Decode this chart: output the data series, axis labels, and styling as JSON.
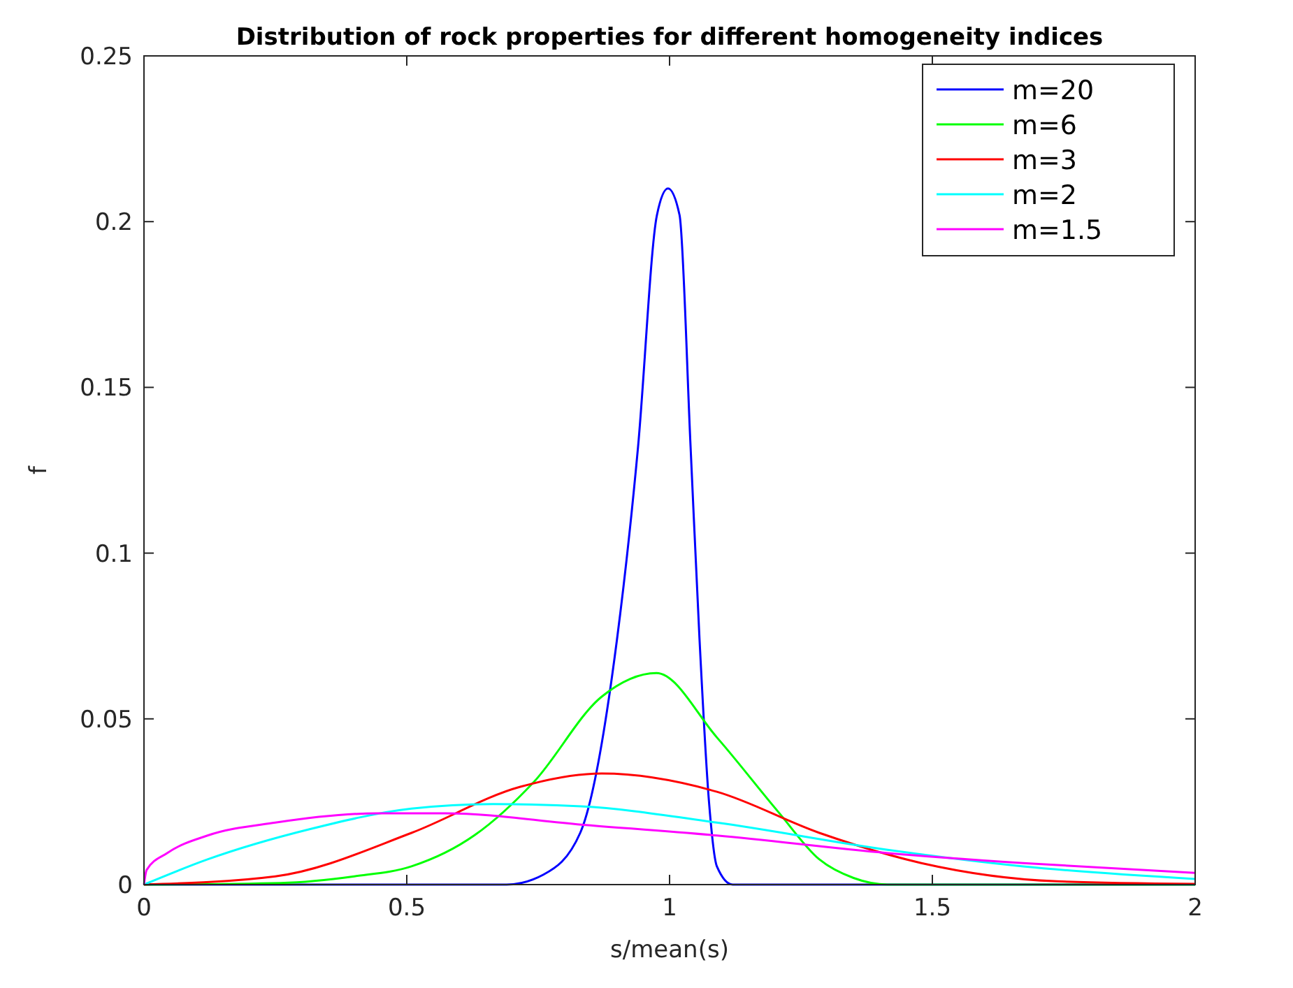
{
  "chart_data": {
    "type": "line",
    "title": "Distribution of rock properties for different homogeneity indices",
    "xlabel": "s/mean(s)",
    "ylabel": "f",
    "xlim": [
      0,
      2
    ],
    "ylim": [
      0,
      0.25
    ],
    "xticks": [
      0,
      0.5,
      1,
      1.5,
      2
    ],
    "yticks": [
      0,
      0.05,
      0.1,
      0.15,
      0.2,
      0.25
    ],
    "grid": false,
    "legend": "top right",
    "marker": "none",
    "line_style": "solid",
    "series": [
      {
        "name": "m=20",
        "color": "#0000ff",
        "x": [
          0,
          0.5,
          0.69,
          0.76,
          0.83,
          0.9,
          0.94,
          0.976,
          0.997,
          1.019,
          1.04,
          1.057,
          1.075,
          1.09,
          1.12,
          1.5,
          2
        ],
        "values": [
          0,
          0,
          0,
          0.003,
          0.0156,
          0.074,
          0.132,
          0.202,
          0.21,
          0.202,
          0.132,
          0.074,
          0.025,
          0.0055,
          0,
          0,
          0
        ]
      },
      {
        "name": "m=6",
        "color": "#00ff00",
        "x": [
          0,
          0.26,
          0.4,
          0.509,
          0.63,
          0.742,
          0.871,
          0.975,
          1.09,
          1.207,
          1.285,
          1.35,
          1.415,
          2
        ],
        "values": [
          0,
          0.0005,
          0.0025,
          0.0055,
          0.015,
          0.031,
          0.0567,
          0.0638,
          0.0444,
          0.0219,
          0.0076,
          0.002,
          0,
          0
        ]
      },
      {
        "name": "m=3",
        "color": "#ff0000",
        "x": [
          0,
          0.25,
          0.509,
          0.716,
          0.871,
          1.09,
          1.285,
          1.479,
          1.737,
          2
        ],
        "values": [
          0,
          0.0025,
          0.0156,
          0.0295,
          0.0335,
          0.028,
          0.0156,
          0.0065,
          0.001,
          0.0002
        ]
      },
      {
        "name": "m=2",
        "color": "#00ffff",
        "x": [
          0,
          0.121,
          0.315,
          0.509,
          0.664,
          0.832,
          1.09,
          1.415,
          1.673,
          2
        ],
        "values": [
          0,
          0.0076,
          0.0167,
          0.0229,
          0.0243,
          0.0236,
          0.0187,
          0.0105,
          0.0055,
          0.0017
        ]
      },
      {
        "name": "m=1.5",
        "color": "#ff00ff",
        "x": [
          0,
          0.005,
          0.044,
          0.121,
          0.25,
          0.444,
          0.574,
          0.832,
          1.09,
          1.415,
          1.673,
          2
        ],
        "values": [
          0,
          0.0044,
          0.0095,
          0.0148,
          0.0187,
          0.0215,
          0.0215,
          0.0181,
          0.0148,
          0.0095,
          0.0065,
          0.0035
        ]
      }
    ]
  }
}
